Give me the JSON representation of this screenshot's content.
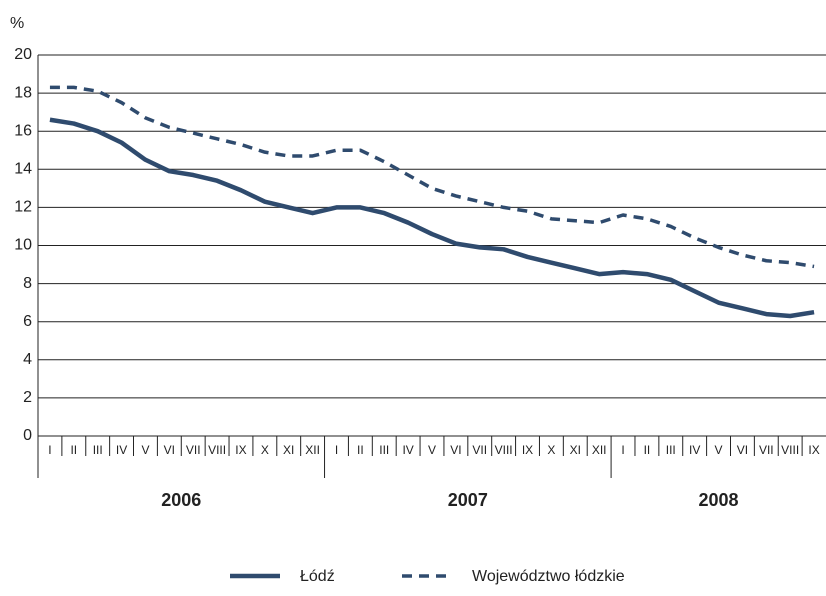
{
  "chart_data": {
    "type": "line",
    "y_label": "%",
    "categories": [
      "I",
      "II",
      "III",
      "IV",
      "V",
      "VI",
      "VII",
      "VIII",
      "IX",
      "X",
      "XI",
      "XII",
      "I",
      "II",
      "III",
      "IV",
      "V",
      "VI",
      "VII",
      "VIII",
      "IX",
      "X",
      "XI",
      "XII",
      "I",
      "II",
      "III",
      "IV",
      "V",
      "VI",
      "VII",
      "VIII",
      "IX"
    ],
    "years": [
      "2006",
      "2007",
      "2008"
    ],
    "series": [
      {
        "name": "Łódź",
        "color": "#2f4b6e",
        "dashed": false,
        "values": [
          16.6,
          16.4,
          16.0,
          15.4,
          14.5,
          13.9,
          13.7,
          13.4,
          12.9,
          12.3,
          12.0,
          11.7,
          12.0,
          12.0,
          11.7,
          11.2,
          10.6,
          10.1,
          9.9,
          9.8,
          9.4,
          9.1,
          8.8,
          8.5,
          8.6,
          8.5,
          8.2,
          7.6,
          7.0,
          6.7,
          6.4,
          6.3,
          6.5
        ]
      },
      {
        "name": "Województwo łódzkie",
        "color": "#2f4b6e",
        "dashed": true,
        "values": [
          18.3,
          18.3,
          18.1,
          17.5,
          16.7,
          16.2,
          15.9,
          15.6,
          15.3,
          14.9,
          14.7,
          14.7,
          15.0,
          15.0,
          14.4,
          13.7,
          13.0,
          12.6,
          12.3,
          12.0,
          11.8,
          11.4,
          11.3,
          11.2,
          11.6,
          11.4,
          11.0,
          10.4,
          9.9,
          9.5,
          9.2,
          9.1,
          8.9
        ]
      }
    ],
    "ylim": [
      0,
      20
    ],
    "yticks": [
      0,
      2,
      4,
      6,
      8,
      10,
      12,
      14,
      16,
      18,
      20
    ],
    "grid": true
  }
}
